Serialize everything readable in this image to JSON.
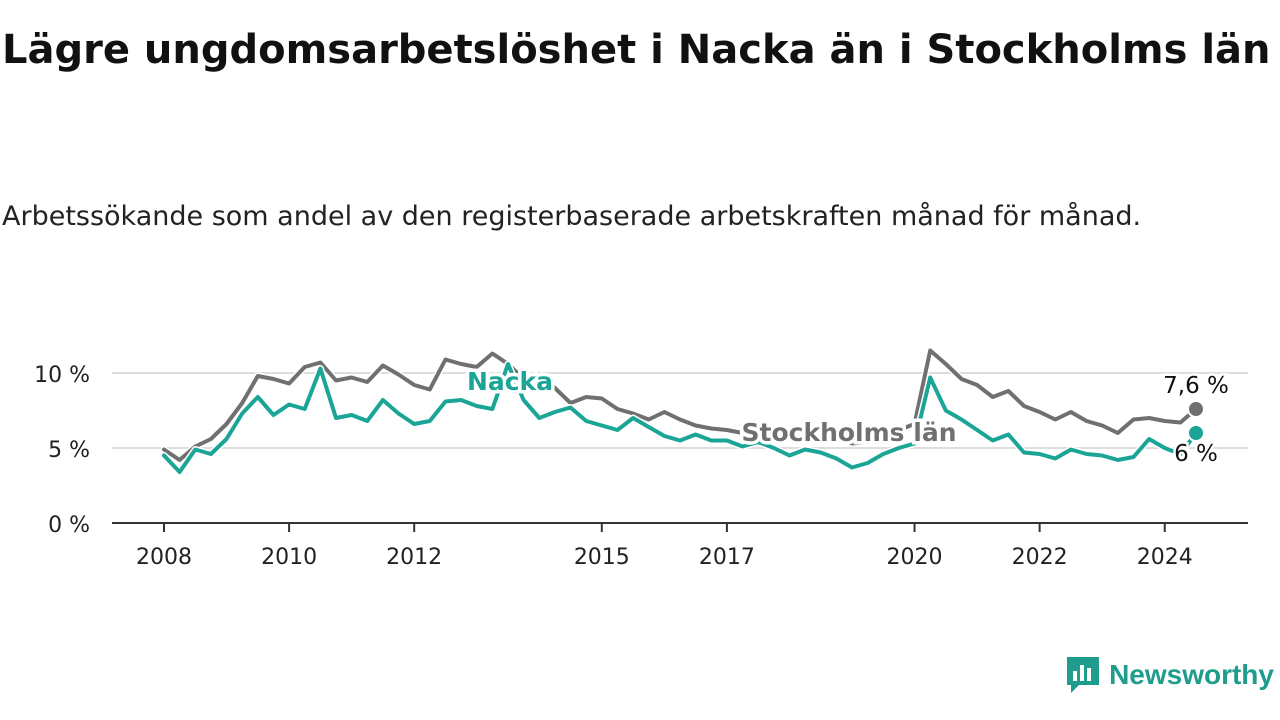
{
  "title": "Lägre ungdomsarbetslöshet i Nacka än i Stockholms län",
  "subtitle": "Arbetssökande som andel av den registerbaserade arbetskraften månad för månad.",
  "brand": {
    "name": "Newsworthy"
  },
  "colors": {
    "nacka": "#1aa596",
    "stockholm": "#707070",
    "grid": "#dddddd",
    "axis": "#333333",
    "text": "#222222"
  },
  "chart_data": {
    "type": "line",
    "title": "Lägre ungdomsarbetslöshet i Nacka än i Stockholms län",
    "xlabel": "",
    "ylabel": "",
    "xlim": [
      2008,
      2025
    ],
    "ylim": [
      0,
      10
    ],
    "x_ticks": [
      2008,
      2010,
      2012,
      2015,
      2017,
      2020,
      2022,
      2024
    ],
    "x_tick_labels": [
      "2008",
      "2010",
      "2012",
      "2015",
      "2017",
      "2020",
      "2022",
      "2024"
    ],
    "y_ticks": [
      0,
      5,
      10
    ],
    "y_tick_labels": [
      "0 %",
      "5 %",
      "10 %"
    ],
    "grid": true,
    "series": [
      {
        "name": "Stockholms län",
        "label": "Stockholms län",
        "end_label": "7,6 %",
        "x": [
          2008.0,
          2008.25,
          2008.5,
          2008.75,
          2009.0,
          2009.25,
          2009.5,
          2009.75,
          2010.0,
          2010.25,
          2010.5,
          2010.75,
          2011.0,
          2011.25,
          2011.5,
          2011.75,
          2012.0,
          2012.25,
          2012.5,
          2012.75,
          2013.0,
          2013.25,
          2013.5,
          2013.75,
          2014.0,
          2014.25,
          2014.5,
          2014.75,
          2015.0,
          2015.25,
          2015.5,
          2015.75,
          2016.0,
          2016.25,
          2016.5,
          2016.75,
          2017.0,
          2017.25,
          2017.5,
          2017.75,
          2018.0,
          2018.25,
          2018.5,
          2018.75,
          2019.0,
          2019.25,
          2019.5,
          2019.75,
          2020.0,
          2020.25,
          2020.5,
          2020.75,
          2021.0,
          2021.25,
          2021.5,
          2021.75,
          2022.0,
          2022.25,
          2022.5,
          2022.75,
          2023.0,
          2023.25,
          2023.5,
          2023.75,
          2024.0,
          2024.25,
          2024.5
        ],
        "values": [
          4.9,
          4.2,
          5.1,
          5.6,
          6.6,
          8.0,
          9.8,
          9.6,
          9.3,
          10.4,
          10.7,
          9.5,
          9.7,
          9.4,
          10.5,
          9.9,
          9.2,
          8.9,
          10.9,
          10.6,
          10.4,
          11.3,
          10.6,
          9.6,
          9.9,
          9.0,
          8.0,
          8.4,
          8.3,
          7.6,
          7.3,
          6.9,
          7.4,
          6.9,
          6.5,
          6.3,
          6.2,
          6.0,
          6.5,
          5.9,
          5.6,
          5.7,
          5.6,
          5.6,
          5.3,
          5.4,
          5.6,
          6.2,
          6.6,
          11.5,
          10.6,
          9.6,
          9.2,
          8.4,
          8.8,
          7.8,
          7.4,
          6.9,
          7.4,
          6.8,
          6.5,
          6.0,
          6.9,
          7.0,
          6.8,
          6.7,
          7.6
        ]
      },
      {
        "name": "Nacka",
        "label": "Nacka",
        "end_label": "6 %",
        "x": [
          2008.0,
          2008.25,
          2008.5,
          2008.75,
          2009.0,
          2009.25,
          2009.5,
          2009.75,
          2010.0,
          2010.25,
          2010.5,
          2010.75,
          2011.0,
          2011.25,
          2011.5,
          2011.75,
          2012.0,
          2012.25,
          2012.5,
          2012.75,
          2013.0,
          2013.25,
          2013.5,
          2013.75,
          2014.0,
          2014.25,
          2014.5,
          2014.75,
          2015.0,
          2015.25,
          2015.5,
          2015.75,
          2016.0,
          2016.25,
          2016.5,
          2016.75,
          2017.0,
          2017.25,
          2017.5,
          2017.75,
          2018.0,
          2018.25,
          2018.5,
          2018.75,
          2019.0,
          2019.25,
          2019.5,
          2019.75,
          2020.0,
          2020.25,
          2020.5,
          2020.75,
          2021.0,
          2021.25,
          2021.5,
          2021.75,
          2022.0,
          2022.25,
          2022.5,
          2022.75,
          2023.0,
          2023.25,
          2023.5,
          2023.75,
          2024.0,
          2024.25,
          2024.5
        ],
        "values": [
          4.5,
          3.4,
          4.9,
          4.6,
          5.6,
          7.3,
          8.4,
          7.2,
          7.9,
          7.6,
          10.3,
          7.0,
          7.2,
          6.8,
          8.2,
          7.3,
          6.6,
          6.8,
          8.1,
          8.2,
          7.8,
          7.6,
          10.6,
          8.2,
          7.0,
          7.4,
          7.7,
          6.8,
          6.5,
          6.2,
          7.0,
          6.4,
          5.8,
          5.5,
          5.9,
          5.5,
          5.5,
          5.1,
          5.4,
          5.0,
          4.5,
          4.9,
          4.7,
          4.3,
          3.7,
          4.0,
          4.6,
          5.0,
          5.3,
          9.7,
          7.5,
          6.9,
          6.2,
          5.5,
          5.9,
          4.7,
          4.6,
          4.3,
          4.9,
          4.6,
          4.5,
          4.2,
          4.4,
          5.6,
          5.0,
          4.6,
          6.0
        ]
      }
    ]
  }
}
